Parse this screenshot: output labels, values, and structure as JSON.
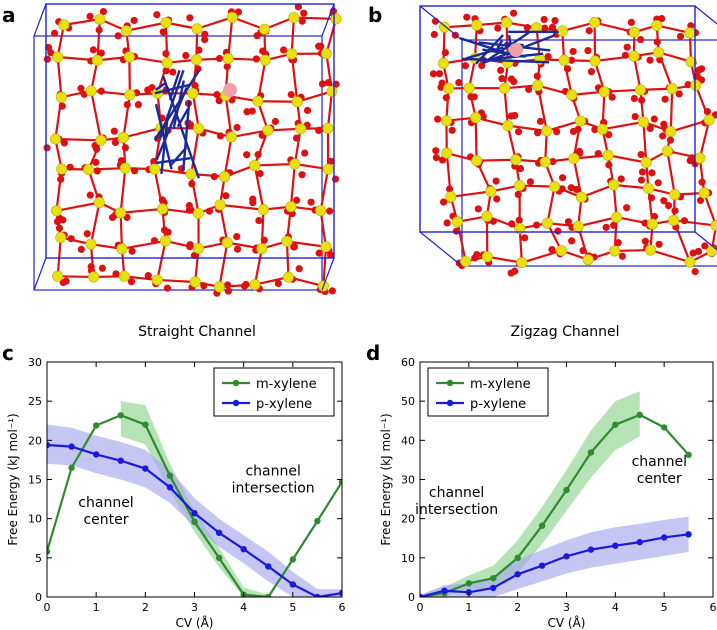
{
  "panels": {
    "a": "a",
    "b": "b",
    "c": "c",
    "d": "d"
  },
  "colors": {
    "green": "#2e8b2e",
    "blue": "#1a1adb",
    "green_band": "#8fd48f",
    "blue_band": "#a8a8f0",
    "box": "#2222cc",
    "oxygen": "#dd1111",
    "silicon": "#e8e011",
    "molecule": "#1a2a9a",
    "ion": "#f0a0a8"
  },
  "chart_data": [
    {
      "type": "line",
      "panel": "c",
      "title": "Straight Channel",
      "xlabel": "CV (Å)",
      "ylabel": "Free Energy (kJ mol⁻¹)",
      "xlim": [
        0,
        6
      ],
      "ylim": [
        0,
        30
      ],
      "xticks": [
        0,
        1,
        2,
        3,
        4,
        5,
        6
      ],
      "yticks": [
        0,
        5,
        10,
        15,
        20,
        25,
        30
      ],
      "legend_position": "top-right",
      "series": [
        {
          "name": "m-xylene",
          "color": "green",
          "x": [
            0,
            0.5,
            1.0,
            1.5,
            2.0,
            2.5,
            3.0,
            3.5,
            4.0,
            4.5,
            5.0,
            5.5,
            6.0
          ],
          "y": [
            5.8,
            16.5,
            21.9,
            23.2,
            22.0,
            15.5,
            9.6,
            5.0,
            0.3,
            0.0,
            4.8,
            9.7,
            14.7
          ],
          "band_x": [
            1.5,
            2.0,
            2.5,
            3.0,
            3.5,
            4.0,
            4.5
          ],
          "band_low": [
            20.5,
            19.5,
            13.5,
            8.3,
            3.8,
            0.0,
            0.0
          ],
          "band_high": [
            25.0,
            24.5,
            17.0,
            11.0,
            6.3,
            1.2,
            0.3
          ]
        },
        {
          "name": "p-xylene",
          "color": "blue",
          "x": [
            0,
            0.5,
            1.0,
            1.5,
            2.0,
            2.5,
            3.0,
            3.5,
            4.0,
            4.5,
            5.0,
            5.5,
            6.0
          ],
          "y": [
            19.4,
            19.2,
            18.2,
            17.4,
            16.4,
            14.0,
            10.7,
            8.2,
            6.1,
            3.9,
            1.6,
            0.0,
            0.5
          ],
          "band_x": [
            0,
            0.5,
            1.0,
            1.5,
            2.0,
            2.5,
            3.0,
            3.5,
            4.0,
            4.5,
            5.0,
            5.5,
            6.0
          ],
          "band_low": [
            17.0,
            16.8,
            15.8,
            15.0,
            14.0,
            12.0,
            9.0,
            6.4,
            4.3,
            2.0,
            0.0,
            0.0,
            0.0
          ],
          "band_high": [
            22.0,
            21.6,
            20.6,
            19.8,
            18.8,
            16.2,
            12.6,
            10.0,
            7.9,
            5.8,
            3.2,
            1.0,
            1.0
          ]
        }
      ],
      "annotations": [
        {
          "lines": [
            "channel",
            "center"
          ],
          "x": 1.2,
          "y": 11.5
        },
        {
          "lines": [
            "channel",
            "intersection"
          ],
          "x": 4.6,
          "y": 15.5
        }
      ]
    },
    {
      "type": "line",
      "panel": "d",
      "title": "Zigzag Channel",
      "xlabel": "CV (Å)",
      "ylabel": "Free Energy (kJ mol⁻¹)",
      "xlim": [
        0,
        6
      ],
      "ylim": [
        0,
        60
      ],
      "xticks": [
        0,
        1,
        2,
        3,
        4,
        5,
        6
      ],
      "yticks": [
        0,
        10,
        20,
        30,
        40,
        50,
        60
      ],
      "legend_position": "top-left",
      "series": [
        {
          "name": "m-xylene",
          "color": "green",
          "x": [
            0,
            0.5,
            1.0,
            1.5,
            2.0,
            2.5,
            3.0,
            3.5,
            4.0,
            4.5,
            5.0,
            5.5
          ],
          "y": [
            0.0,
            1.0,
            3.5,
            4.8,
            10.0,
            18.2,
            27.3,
            36.9,
            44.0,
            46.5,
            43.3,
            36.3
          ],
          "band_x": [
            0,
            0.5,
            1.0,
            1.5,
            2.0,
            2.5,
            3.0,
            3.5,
            4.0,
            4.5
          ],
          "band_low": [
            0.0,
            0.0,
            2.0,
            2.0,
            6.0,
            13.5,
            22.0,
            30.5,
            37.5,
            41.0
          ],
          "band_high": [
            0.5,
            2.5,
            5.5,
            8.0,
            14.5,
            23.0,
            32.5,
            42.5,
            50.0,
            52.5
          ]
        },
        {
          "name": "p-xylene",
          "color": "blue",
          "x": [
            0,
            0.5,
            1.0,
            1.5,
            2.0,
            2.5,
            3.0,
            3.5,
            4.0,
            4.5,
            5.0,
            5.5
          ],
          "y": [
            0.0,
            1.6,
            1.2,
            2.3,
            5.8,
            8.0,
            10.4,
            12.1,
            13.1,
            14.0,
            15.2,
            16.0
          ],
          "band_x": [
            0,
            0.5,
            1.0,
            1.5,
            2.0,
            2.5,
            3.0,
            3.5,
            4.0,
            4.5,
            5.0,
            5.5
          ],
          "band_low": [
            0.0,
            0.0,
            0.0,
            0.0,
            2.0,
            4.0,
            6.0,
            7.5,
            8.5,
            9.5,
            10.5,
            11.5
          ],
          "band_high": [
            0.5,
            3.0,
            3.5,
            5.0,
            9.5,
            12.0,
            14.5,
            16.5,
            17.8,
            18.7,
            19.7,
            20.5
          ]
        }
      ],
      "annotations": [
        {
          "lines": [
            "channel",
            "intersection"
          ],
          "x": 0.75,
          "y": 25.5
        },
        {
          "lines": [
            "channel",
            "center"
          ],
          "x": 4.9,
          "y": 33.5
        }
      ]
    }
  ]
}
